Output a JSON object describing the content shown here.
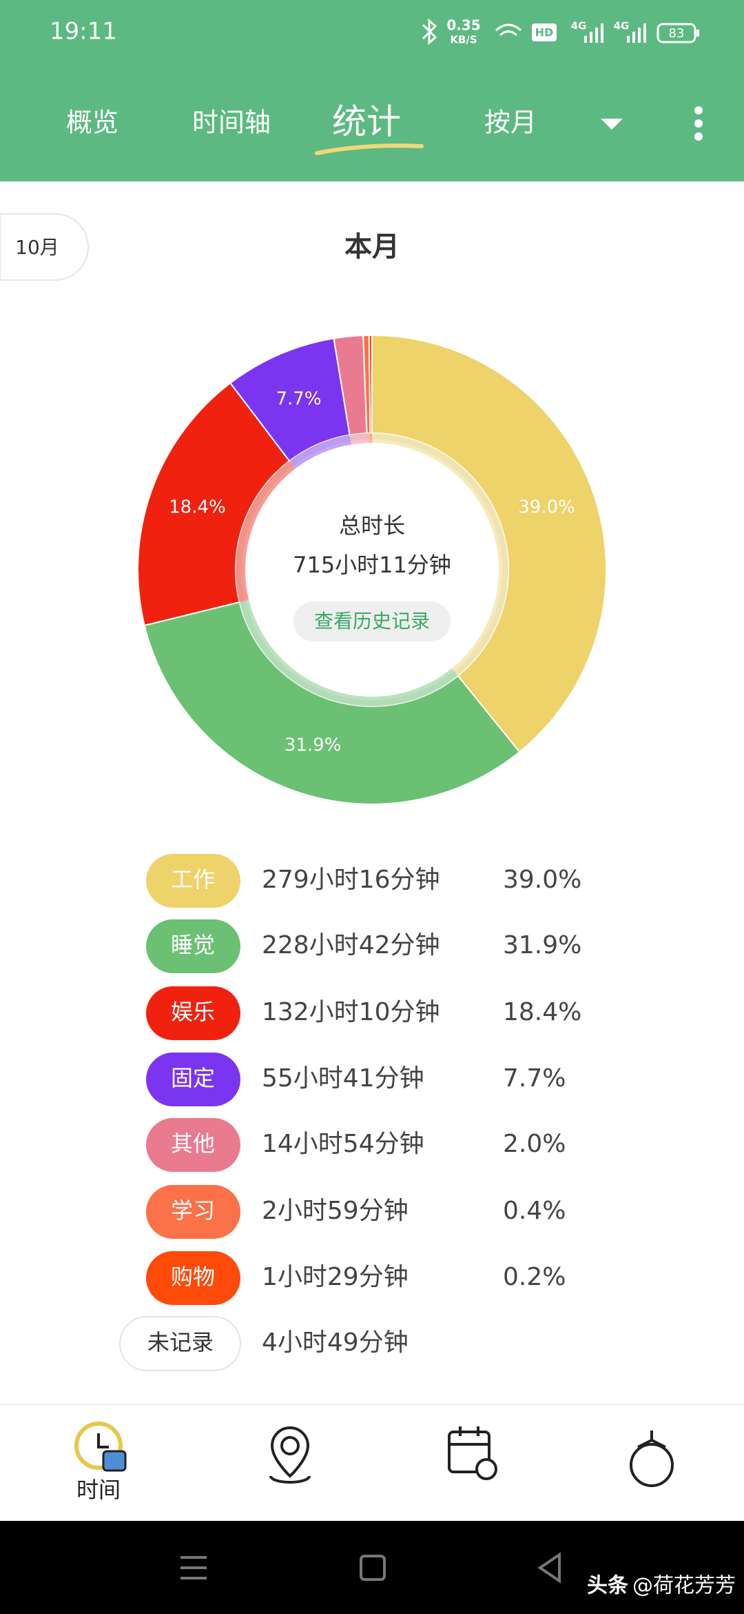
{
  "status_bar": {
    "time": "19:11",
    "speed": "0.35",
    "speed_unit": "KB/S",
    "hd": "HD",
    "network": [
      "4G",
      "4G"
    ],
    "battery": "83"
  },
  "tabs": [
    "概览",
    "时间轴",
    "统计",
    "按月"
  ],
  "active_tab": 2,
  "period_button": "10月",
  "section_title": "本月",
  "chart_data": {
    "type": "donut",
    "center_label": "总时长",
    "center_value": "715小时11分钟",
    "center_button": "查看历史记录",
    "categories": [
      "工作",
      "睡觉",
      "娱乐",
      "固定",
      "其他",
      "学习",
      "购物"
    ],
    "values": [
      39.0,
      31.9,
      18.4,
      7.7,
      2.0,
      0.4,
      0.2
    ],
    "value_labels": [
      "39.0%",
      "31.9%",
      "18.4%",
      "7.7%",
      "2.0%",
      "0.4%",
      "0.2%"
    ],
    "durations": [
      "279小时16分钟",
      "228小时42分钟",
      "132小时10分钟",
      "55小时41分钟",
      "14小时54分钟",
      "2小时59分钟",
      "1小时29分钟"
    ],
    "colors": [
      "#eed26a",
      "#6bc074",
      "#f0220f",
      "#7b35f0",
      "#ea7a8f",
      "#fb7148",
      "#ff4a0a"
    ]
  },
  "unrecorded": {
    "name": "未记录",
    "duration": "4小时49分钟"
  },
  "bottom_nav": {
    "active_label": "时间"
  },
  "watermark": {
    "brand": "头条",
    "author": "@荷花芳芳"
  }
}
